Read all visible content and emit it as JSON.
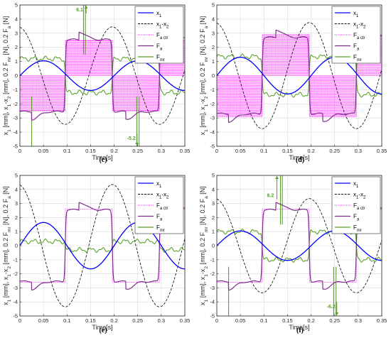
{
  "chart_data": [
    {
      "panel": "(c)",
      "type": "line",
      "xlabel": "Time[s]",
      "ylabel": "x_1 [mm], x_1-x_2 [mm], 0.2·F_mr [N], 0.2·F_a [N]",
      "xlim": [
        0,
        0.35
      ],
      "ylim": [
        -5,
        5
      ],
      "xticks": [
        0,
        0.05,
        0.1,
        0.15,
        0.2,
        0.25,
        0.3,
        0.35
      ],
      "yticks": [
        -5,
        -4,
        -3,
        -2,
        -1,
        0,
        1,
        2,
        3,
        4,
        5
      ],
      "grid": true,
      "legend": "top-right",
      "legend_entries": [
        "x1",
        "x1-x2",
        "Fa ctr",
        "Fa",
        "Fmr"
      ],
      "x1_amp": 1.05,
      "rel_amp": 3.45,
      "fa_level": 2.55,
      "fmr_level": 1.2,
      "fa_ctr_level": 2.5,
      "fa_ctr_dense": true,
      "fmr_spike_up": 5.5,
      "fmr_spike_down": -5.0,
      "annotations": [
        {
          "text": "6.1",
          "x": 0.139,
          "y": 4.7
        },
        {
          "text": "-5.2",
          "x": 0.247,
          "y": -4.4
        }
      ]
    },
    {
      "panel": "(d)",
      "type": "line",
      "xlabel": "Time[s]",
      "ylabel": "x_1 [mm], x_1-x_2 [mm], 0.2·F_mr [N], 0.2·F_a [N]",
      "xlim": [
        0,
        0.35
      ],
      "ylim": [
        -5,
        5
      ],
      "xticks": [
        0,
        0.05,
        0.1,
        0.15,
        0.2,
        0.25,
        0.3,
        0.35
      ],
      "yticks": [
        -5,
        -4,
        -3,
        -2,
        -1,
        0,
        1,
        2,
        3,
        4,
        5
      ],
      "grid": true,
      "legend": "top-right",
      "legend_entries": [
        "x1",
        "x1-x2",
        "Fa ctr",
        "Fa",
        "Fmr"
      ],
      "x1_amp": 1.3,
      "rel_amp": 3.75,
      "fa_level": 2.7,
      "fmr_level": 1.35,
      "fa_ctr_level": 2.9,
      "fa_ctr_dense": true,
      "fmr_spike_up": 0,
      "fmr_spike_down": 0,
      "annotations": []
    },
    {
      "panel": "(e)",
      "type": "line",
      "xlabel": "Time[s]",
      "ylabel": "x_1 [mm], x_1-x_2 [mm], 0.2·F_mr [N], 0.2·F_a [N]",
      "xlim": [
        0,
        0.35
      ],
      "ylim": [
        -5,
        5
      ],
      "xticks": [
        0,
        0.05,
        0.1,
        0.15,
        0.2,
        0.25,
        0.3,
        0.35
      ],
      "yticks": [
        -5,
        -4,
        -3,
        -2,
        -1,
        0,
        1,
        2,
        3,
        4,
        5
      ],
      "grid": true,
      "legend": "top-right",
      "legend_entries": [
        "x1",
        "x1-x2",
        "Fa ctr",
        "Fa",
        "Fmr"
      ],
      "x1_amp": 1.65,
      "rel_amp": 4.35,
      "fa_level": 2.55,
      "fmr_level": 0.3,
      "fa_ctr_level": 2.6,
      "fa_ctr_dense": false,
      "fmr_spike_up": 0,
      "fmr_spike_down": 0,
      "annotations": []
    },
    {
      "panel": "(f)",
      "type": "line",
      "xlabel": "Time[s]",
      "ylabel": "x_1 [mm], x_1-x_2 [mm], 0.2·F_mr [N], 0.2·F_a [N]",
      "xlim": [
        0,
        0.35
      ],
      "ylim": [
        -5,
        5
      ],
      "xticks": [
        0,
        0.05,
        0.1,
        0.15,
        0.2,
        0.25,
        0.3,
        0.35
      ],
      "yticks": [
        -5,
        -4,
        -3,
        -2,
        -1,
        0,
        1,
        2,
        3,
        4,
        5
      ],
      "grid": true,
      "legend": "top-right",
      "legend_entries": [
        "x1",
        "x1-x2",
        "Fa ctr",
        "Fa",
        "Fmr"
      ],
      "x1_amp": 1.05,
      "rel_amp": 3.35,
      "fa_level": 2.55,
      "fmr_level": 1.0,
      "fa_ctr_level": 2.6,
      "fa_ctr_dense": false,
      "fmr_spike_up": 5.5,
      "fmr_spike_down": -5.0,
      "annotations": [
        {
          "text": "6.2",
          "x": 0.126,
          "y": 3.6
        },
        {
          "text": "-6.2",
          "x": 0.253,
          "y": -4.3
        }
      ]
    }
  ],
  "colors": {
    "x1": "#0000ff",
    "rel": "#000000",
    "fa_ctr": "#ff00ff",
    "fa": "#7e2f8e",
    "fmr": "#5aa02c",
    "grid": "#dcdcdc"
  }
}
